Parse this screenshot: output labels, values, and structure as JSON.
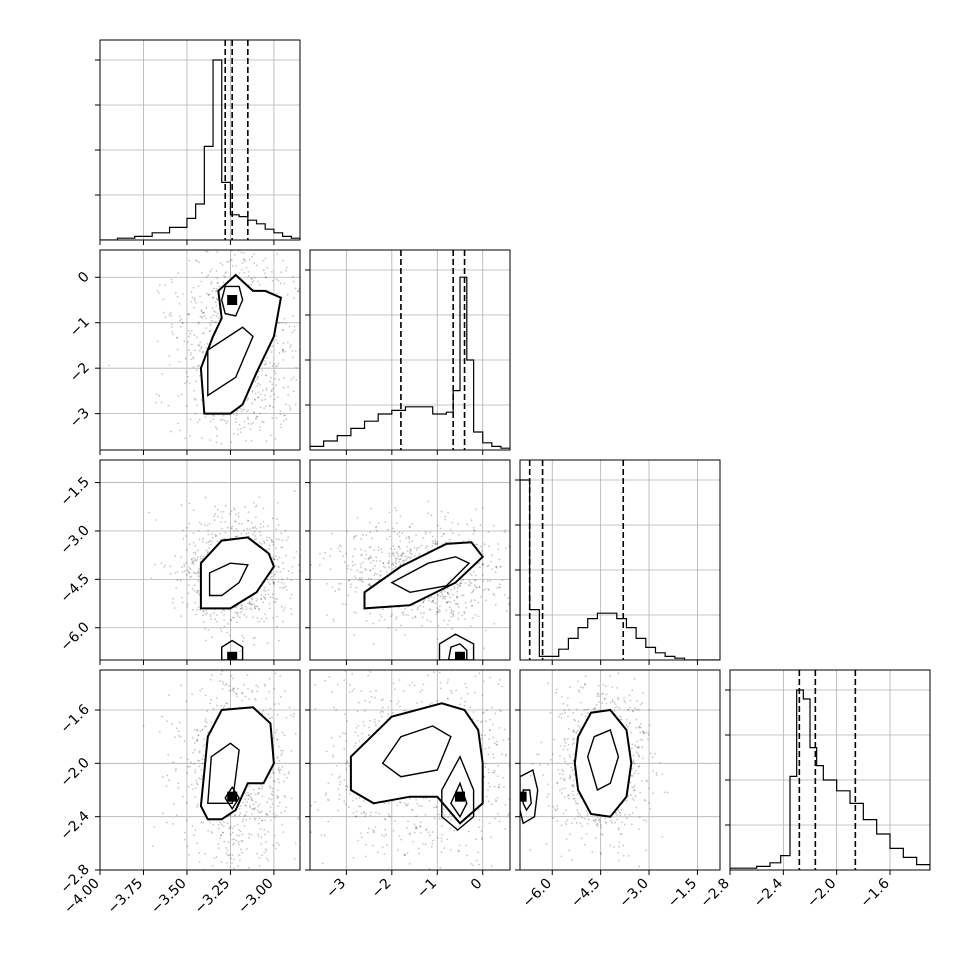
{
  "chart_data": {
    "type": "corner",
    "parameters": 4,
    "grid": true,
    "ranges": [
      [
        -4.0,
        -2.85
      ],
      [
        -3.8,
        0.6
      ],
      [
        -7.0,
        -0.8
      ],
      [
        -2.8,
        -1.3
      ]
    ],
    "ticks": [
      {
        "values": [
          -4.0,
          -3.75,
          -3.5,
          -3.25,
          -3.0
        ],
        "labels": [
          "−4.00",
          "−3.75",
          "−3.50",
          "−3.25",
          "−3.00"
        ]
      },
      {
        "values": [
          -3,
          -2,
          -1,
          0
        ],
        "labels": [
          "−3",
          "−2",
          "−1",
          "0"
        ]
      },
      {
        "values": [
          -6.0,
          -4.5,
          -3.0,
          -1.5
        ],
        "labels": [
          "−6.0",
          "−4.5",
          "−3.0",
          "−1.5"
        ]
      },
      {
        "values": [
          -2.8,
          -2.4,
          -2.0,
          -1.6
        ],
        "labels": [
          "−2.8",
          "−2.4",
          "−2.0",
          "−1.6"
        ]
      }
    ],
    "histograms": [
      {
        "param": 0,
        "quantiles": [
          -3.28,
          -3.24,
          -3.15
        ],
        "bins": [
          -4.0,
          -3.9,
          -3.8,
          -3.7,
          -3.6,
          -3.5,
          -3.45,
          -3.4,
          -3.35,
          -3.3,
          -3.25,
          -3.2,
          -3.15,
          -3.1,
          -3.05,
          -3.0,
          -2.95,
          -2.9,
          -2.85
        ],
        "counts": [
          0,
          0.01,
          0.02,
          0.04,
          0.07,
          0.12,
          0.2,
          0.52,
          1.0,
          0.32,
          0.14,
          0.13,
          0.11,
          0.09,
          0.06,
          0.04,
          0.02,
          0.01
        ]
      },
      {
        "param": 1,
        "quantiles": [
          -1.8,
          -0.65,
          -0.4
        ],
        "bins": [
          -3.8,
          -3.5,
          -3.2,
          -2.9,
          -2.6,
          -2.3,
          -2.0,
          -1.7,
          -1.4,
          -1.1,
          -0.8,
          -0.65,
          -0.5,
          -0.35,
          -0.2,
          0.0,
          0.2,
          0.4,
          0.6
        ],
        "counts": [
          0.02,
          0.05,
          0.08,
          0.12,
          0.16,
          0.2,
          0.22,
          0.24,
          0.24,
          0.2,
          0.21,
          0.33,
          0.96,
          0.5,
          0.1,
          0.04,
          0.02,
          0.01
        ]
      },
      {
        "param": 2,
        "quantiles": [
          -6.7,
          -6.3,
          -3.8
        ],
        "bins": [
          -7.0,
          -6.7,
          -6.4,
          -6.1,
          -5.8,
          -5.5,
          -5.2,
          -4.9,
          -4.6,
          -4.3,
          -4.0,
          -3.7,
          -3.4,
          -3.1,
          -2.8,
          -2.5,
          -2.2,
          -1.9,
          -0.8
        ],
        "counts": [
          1.0,
          0.28,
          0.02,
          0.02,
          0.06,
          0.12,
          0.18,
          0.23,
          0.26,
          0.26,
          0.23,
          0.18,
          0.12,
          0.07,
          0.04,
          0.02,
          0.01,
          0.0
        ]
      },
      {
        "param": 3,
        "quantiles": [
          -2.28,
          -2.16,
          -1.86
        ],
        "bins": [
          -2.8,
          -2.6,
          -2.5,
          -2.42,
          -2.35,
          -2.3,
          -2.25,
          -2.2,
          -2.15,
          -2.1,
          -2.0,
          -1.9,
          -1.8,
          -1.7,
          -1.6,
          -1.5,
          -1.4,
          -1.3
        ],
        "counts": [
          0.01,
          0.02,
          0.04,
          0.08,
          0.52,
          1.0,
          0.95,
          0.68,
          0.58,
          0.5,
          0.44,
          0.37,
          0.28,
          0.2,
          0.12,
          0.07,
          0.03
        ]
      }
    ],
    "panels_2d": [
      {
        "x": 0,
        "y": 1,
        "contours": [
          [
            [
              -3.4,
              -3.0
            ],
            [
              -3.42,
              -2.0
            ],
            [
              -3.35,
              -1.3
            ],
            [
              -3.3,
              -0.9
            ],
            [
              -3.32,
              -0.3
            ],
            [
              -3.22,
              0.05
            ],
            [
              -3.12,
              -0.3
            ],
            [
              -3.05,
              -0.3
            ],
            [
              -2.96,
              -0.45
            ],
            [
              -3.0,
              -1.3
            ],
            [
              -3.1,
              -2.1
            ],
            [
              -3.18,
              -2.8
            ],
            [
              -3.25,
              -3.0
            ]
          ],
          [
            [
              -3.38,
              -2.6
            ],
            [
              -3.38,
              -1.6
            ],
            [
              -3.18,
              -1.1
            ],
            [
              -3.12,
              -1.3
            ],
            [
              -3.22,
              -2.2
            ]
          ],
          [
            [
              -3.3,
              -0.5
            ],
            [
              -3.28,
              -0.2
            ],
            [
              -3.2,
              -0.2
            ],
            [
              -3.18,
              -0.5
            ],
            [
              -3.22,
              -0.85
            ],
            [
              -3.28,
              -0.8
            ]
          ]
        ],
        "peaks": [
          [
            -3.24,
            -0.5
          ]
        ]
      },
      {
        "x": 0,
        "y": 2,
        "contours": [
          [
            [
              -3.42,
              -5.4
            ],
            [
              -3.42,
              -4.0
            ],
            [
              -3.3,
              -3.3
            ],
            [
              -3.15,
              -3.2
            ],
            [
              -3.03,
              -3.7
            ],
            [
              -3.0,
              -4.1
            ],
            [
              -3.1,
              -4.9
            ],
            [
              -3.25,
              -5.4
            ]
          ],
          [
            [
              -3.37,
              -5.0
            ],
            [
              -3.37,
              -4.3
            ],
            [
              -3.25,
              -4.0
            ],
            [
              -3.15,
              -4.05
            ],
            [
              -3.2,
              -4.6
            ],
            [
              -3.3,
              -5.0
            ]
          ],
          [
            [
              -3.3,
              -7.0
            ],
            [
              -3.3,
              -6.6
            ],
            [
              -3.24,
              -6.4
            ],
            [
              -3.18,
              -6.6
            ],
            [
              -3.18,
              -7.0
            ]
          ]
        ],
        "peaks": [
          [
            -3.24,
            -6.9
          ]
        ]
      },
      {
        "x": 1,
        "y": 2,
        "contours": [
          [
            [
              -2.6,
              -5.4
            ],
            [
              -2.6,
              -4.9
            ],
            [
              -1.8,
              -4.1
            ],
            [
              -0.8,
              -3.4
            ],
            [
              -0.25,
              -3.35
            ],
            [
              0.0,
              -3.8
            ],
            [
              -0.6,
              -4.6
            ],
            [
              -1.6,
              -5.3
            ]
          ],
          [
            [
              -2.0,
              -4.6
            ],
            [
              -1.2,
              -4.0
            ],
            [
              -0.6,
              -3.8
            ],
            [
              -0.3,
              -4.0
            ],
            [
              -0.8,
              -4.7
            ],
            [
              -1.6,
              -4.9
            ]
          ],
          [
            [
              -0.95,
              -7.0
            ],
            [
              -0.95,
              -6.5
            ],
            [
              -0.6,
              -6.2
            ],
            [
              -0.2,
              -6.5
            ],
            [
              -0.2,
              -7.0
            ]
          ],
          [
            [
              -0.75,
              -7.0
            ],
            [
              -0.7,
              -6.6
            ],
            [
              -0.5,
              -6.5
            ],
            [
              -0.35,
              -6.7
            ],
            [
              -0.35,
              -7.0
            ]
          ]
        ],
        "peaks": [
          [
            -0.5,
            -6.9
          ]
        ]
      },
      {
        "x": 0,
        "y": 3,
        "contours": [
          [
            [
              -3.42,
              -2.32
            ],
            [
              -3.38,
              -1.8
            ],
            [
              -3.3,
              -1.6
            ],
            [
              -3.12,
              -1.58
            ],
            [
              -3.02,
              -1.7
            ],
            [
              -3.0,
              -2.0
            ],
            [
              -3.06,
              -2.15
            ],
            [
              -3.15,
              -2.15
            ],
            [
              -3.22,
              -2.35
            ],
            [
              -3.3,
              -2.42
            ],
            [
              -3.38,
              -2.42
            ]
          ],
          [
            [
              -3.38,
              -2.3
            ],
            [
              -3.36,
              -1.95
            ],
            [
              -3.25,
              -1.85
            ],
            [
              -3.2,
              -1.9
            ],
            [
              -3.22,
              -2.1
            ],
            [
              -3.24,
              -2.3
            ]
          ],
          [
            [
              -3.28,
              -2.26
            ],
            [
              -3.24,
              -2.18
            ],
            [
              -3.2,
              -2.26
            ],
            [
              -3.24,
              -2.34
            ]
          ]
        ],
        "peaks": [
          [
            -3.24,
            -2.25
          ]
        ]
      },
      {
        "x": 1,
        "y": 3,
        "contours": [
          [
            [
              -2.9,
              -2.2
            ],
            [
              -2.9,
              -1.95
            ],
            [
              -2.0,
              -1.65
            ],
            [
              -0.9,
              -1.55
            ],
            [
              -0.4,
              -1.6
            ],
            [
              -0.1,
              -1.75
            ],
            [
              0.0,
              -2.0
            ],
            [
              0.0,
              -2.3
            ],
            [
              -0.5,
              -2.45
            ],
            [
              -1.0,
              -2.25
            ],
            [
              -1.6,
              -2.25
            ],
            [
              -2.4,
              -2.3
            ]
          ],
          [
            [
              -2.2,
              -2.0
            ],
            [
              -1.8,
              -1.8
            ],
            [
              -1.1,
              -1.72
            ],
            [
              -0.7,
              -1.8
            ],
            [
              -1.0,
              -2.05
            ],
            [
              -1.8,
              -2.1
            ]
          ],
          [
            [
              -0.9,
              -2.4
            ],
            [
              -0.9,
              -2.2
            ],
            [
              -0.5,
              -1.95
            ],
            [
              -0.2,
              -2.2
            ],
            [
              -0.2,
              -2.4
            ],
            [
              -0.55,
              -2.5
            ]
          ],
          [
            [
              -0.7,
              -2.3
            ],
            [
              -0.5,
              -2.15
            ],
            [
              -0.35,
              -2.3
            ],
            [
              -0.5,
              -2.4
            ]
          ]
        ],
        "peaks": [
          [
            -0.5,
            -2.25
          ]
        ]
      },
      {
        "x": 2,
        "y": 3,
        "contours": [
          [
            [
              -5.3,
              -2.0
            ],
            [
              -5.2,
              -1.8
            ],
            [
              -4.8,
              -1.62
            ],
            [
              -4.2,
              -1.6
            ],
            [
              -3.7,
              -1.75
            ],
            [
              -3.55,
              -2.0
            ],
            [
              -3.7,
              -2.25
            ],
            [
              -4.2,
              -2.4
            ],
            [
              -4.8,
              -2.38
            ],
            [
              -5.2,
              -2.2
            ]
          ],
          [
            [
              -4.9,
              -1.95
            ],
            [
              -4.7,
              -1.8
            ],
            [
              -4.2,
              -1.75
            ],
            [
              -3.95,
              -1.95
            ],
            [
              -4.2,
              -2.15
            ],
            [
              -4.6,
              -2.2
            ]
          ],
          [
            [
              -7.0,
              -2.35
            ],
            [
              -7.0,
              -2.1
            ],
            [
              -6.6,
              -2.05
            ],
            [
              -6.45,
              -2.2
            ],
            [
              -6.55,
              -2.4
            ],
            [
              -6.9,
              -2.45
            ]
          ],
          [
            [
              -6.9,
              -2.3
            ],
            [
              -6.9,
              -2.2
            ],
            [
              -6.7,
              -2.2
            ],
            [
              -6.65,
              -2.3
            ],
            [
              -6.8,
              -2.35
            ]
          ]
        ],
        "peaks": [
          [
            -6.95,
            -2.25
          ]
        ]
      }
    ]
  }
}
